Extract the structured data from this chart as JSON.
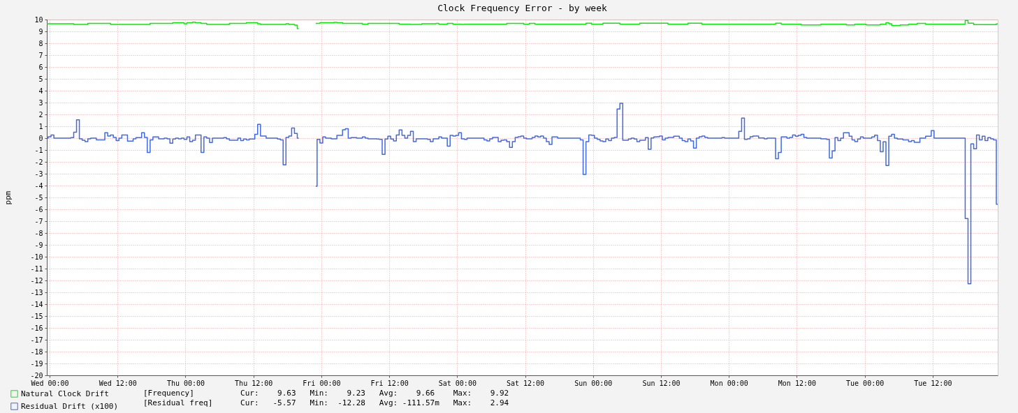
{
  "chart_data": {
    "type": "step",
    "title": "Clock Frequency Error - by week",
    "ylabel": "ppm",
    "categories": [
      null,
      "Wed 00:00",
      null,
      null,
      null,
      null,
      null,
      null,
      null,
      null,
      null,
      null,
      null,
      null,
      null,
      null,
      null,
      null,
      null,
      null,
      null,
      null,
      null,
      null,
      null,
      "Wed 12:00",
      null,
      null,
      null,
      null,
      null,
      null,
      null,
      null,
      null,
      null,
      null,
      null,
      null,
      null,
      null,
      null,
      null,
      null,
      null,
      null,
      null,
      null,
      null,
      "Thu 00:00",
      null,
      null,
      null,
      null,
      null,
      null,
      null,
      null,
      null,
      null,
      null,
      null,
      null,
      null,
      null,
      null,
      null,
      null,
      null,
      null,
      null,
      null,
      null,
      "Thu 12:00",
      null,
      null,
      null,
      null,
      null,
      null,
      null,
      null,
      null,
      null,
      null,
      null,
      null,
      null,
      null,
      null,
      null,
      null,
      null,
      null,
      null,
      null,
      null,
      "Fri 00:00",
      null,
      null,
      null,
      null,
      null,
      null,
      null,
      null,
      null,
      null,
      null,
      null,
      null,
      null,
      null,
      null,
      null,
      null,
      null,
      null,
      null,
      null,
      null,
      "Fri 12:00",
      null,
      null,
      null,
      null,
      null,
      null,
      null,
      null,
      null,
      null,
      null,
      null,
      null,
      null,
      null,
      null,
      null,
      null,
      null,
      null,
      null,
      null,
      null,
      "Sat 00:00",
      null,
      null,
      null,
      null,
      null,
      null,
      null,
      null,
      null,
      null,
      null,
      null,
      null,
      null,
      null,
      null,
      null,
      null,
      null,
      null,
      null,
      null,
      null,
      "Sat 12:00",
      null,
      null,
      null,
      null,
      null,
      null,
      null,
      null,
      null,
      null,
      null,
      null,
      null,
      null,
      null,
      null,
      null,
      null,
      null,
      null,
      null,
      null,
      null,
      "Sun 00:00",
      null,
      null,
      null,
      null,
      null,
      null,
      null,
      null,
      null,
      null,
      null,
      null,
      null,
      null,
      null,
      null,
      null,
      null,
      null,
      null,
      null,
      null,
      null,
      "Sun 12:00",
      null,
      null,
      null,
      null,
      null,
      null,
      null,
      null,
      null,
      null,
      null,
      null,
      null,
      null,
      null,
      null,
      null,
      null,
      null,
      null,
      null,
      null,
      null,
      "Mon 00:00",
      null,
      null,
      null,
      null,
      null,
      null,
      null,
      null,
      null,
      null,
      null,
      null,
      null,
      null,
      null,
      null,
      null,
      null,
      null,
      null,
      null,
      null,
      null,
      "Mon 12:00",
      null,
      null,
      null,
      null,
      null,
      null,
      null,
      null,
      null,
      null,
      null,
      null,
      null,
      null,
      null,
      null,
      null,
      null,
      null,
      null,
      null,
      null,
      null,
      "Tue 00:00",
      null,
      null,
      null,
      null,
      null,
      null,
      null,
      null,
      null,
      null,
      null,
      null,
      null,
      null,
      null,
      null,
      null,
      null,
      null,
      null,
      null,
      null,
      null,
      "Tue 12:00",
      null,
      null,
      null,
      null,
      null,
      null,
      null,
      null,
      null,
      null,
      null,
      null,
      null,
      null,
      null,
      null,
      null,
      null,
      null,
      null,
      null,
      null,
      null
    ],
    "ylim": [
      -20,
      10
    ],
    "yticks": [
      -20,
      -19,
      -18,
      -17,
      -16,
      -15,
      -14,
      -13,
      -12,
      -11,
      -10,
      -9,
      -8,
      -7,
      -6,
      -5,
      -4,
      -3,
      -2,
      -1,
      0,
      1,
      2,
      3,
      4,
      5,
      6,
      7,
      8,
      9,
      10
    ],
    "grid": true,
    "legend": "bottom",
    "series": [
      {
        "name": "Natural Clock Drift",
        "color": "#00ee00",
        "values": [
          9.65,
          9.65,
          9.65,
          9.65,
          9.65,
          9.65,
          9.65,
          9.65,
          9.65,
          9.65,
          9.59,
          9.59,
          9.59,
          9.59,
          9.59,
          9.67,
          9.67,
          9.67,
          9.67,
          9.67,
          9.67,
          9.67,
          9.67,
          9.59,
          9.59,
          9.59,
          9.59,
          9.59,
          9.59,
          9.59,
          9.59,
          9.59,
          9.59,
          9.59,
          9.59,
          9.59,
          9.59,
          9.67,
          9.67,
          9.67,
          9.67,
          9.67,
          9.67,
          9.67,
          9.67,
          9.73,
          9.73,
          9.73,
          9.73,
          9.65,
          9.73,
          9.73,
          9.78,
          9.73,
          9.73,
          9.67,
          9.67,
          9.59,
          9.59,
          9.59,
          9.59,
          9.59,
          9.59,
          9.59,
          9.59,
          9.67,
          9.67,
          9.67,
          9.67,
          9.67,
          9.67,
          9.73,
          9.73,
          9.73,
          9.73,
          9.65,
          9.59,
          9.59,
          9.59,
          9.59,
          9.59,
          9.59,
          9.59,
          9.59,
          9.59,
          9.65,
          9.59,
          9.59,
          9.53,
          9.23,
          null,
          null,
          null,
          null,
          null,
          9.67,
          9.67,
          9.73,
          9.73,
          9.73,
          9.73,
          9.73,
          9.76,
          9.73,
          9.73,
          9.67,
          9.67,
          9.67,
          9.67,
          9.67,
          9.67,
          9.67,
          9.61,
          9.61,
          9.67,
          9.67,
          9.67,
          9.67,
          9.67,
          9.67,
          9.67,
          9.67,
          9.67,
          9.67,
          9.67,
          9.61,
          9.61,
          9.61,
          9.61,
          9.59,
          9.59,
          9.59,
          9.59,
          9.65,
          9.65,
          9.65,
          9.65,
          9.65,
          9.67,
          9.61,
          9.61,
          9.61,
          9.67,
          9.67,
          9.61,
          9.61,
          9.61,
          9.59,
          9.61,
          9.61,
          9.61,
          9.61,
          9.61,
          9.61,
          9.61,
          9.61,
          9.61,
          9.61,
          9.61,
          9.61,
          9.61,
          9.61,
          9.61,
          9.67,
          9.67,
          9.67,
          9.67,
          9.67,
          9.67,
          9.61,
          9.61,
          9.67,
          9.67,
          9.61,
          9.61,
          9.61,
          9.61,
          9.61,
          9.61,
          9.61,
          9.61,
          9.61,
          9.61,
          9.61,
          9.61,
          9.61,
          9.61,
          9.61,
          9.61,
          9.61,
          9.61,
          9.69,
          9.69,
          9.61,
          9.61,
          9.61,
          9.61,
          9.69,
          9.69,
          9.69,
          9.69,
          9.69,
          9.69,
          9.61,
          9.61,
          9.61,
          9.61,
          9.61,
          9.61,
          9.61,
          9.69,
          9.69,
          9.69,
          9.69,
          9.69,
          9.69,
          9.69,
          9.69,
          9.69,
          9.69,
          9.61,
          9.61,
          9.61,
          9.61,
          9.61,
          9.61,
          9.61,
          9.69,
          9.69,
          9.69,
          9.69,
          9.69,
          9.61,
          9.61,
          9.61,
          9.61,
          9.61,
          9.61,
          9.61,
          9.61,
          9.61,
          9.61,
          9.61,
          9.61,
          9.61,
          9.61,
          9.61,
          9.61,
          9.61,
          9.61,
          9.61,
          9.61,
          9.61,
          9.61,
          9.61,
          9.61,
          9.61,
          9.61,
          9.69,
          9.69,
          9.61,
          9.61,
          9.61,
          9.61,
          9.61,
          9.61,
          9.61,
          9.55,
          9.55,
          9.55,
          9.55,
          9.55,
          9.55,
          9.55,
          9.61,
          9.61,
          9.61,
          9.61,
          9.61,
          9.61,
          9.61,
          9.61,
          9.61,
          9.55,
          9.55,
          9.55,
          9.61,
          9.61,
          9.61,
          9.61,
          9.55,
          9.55,
          9.55,
          9.55,
          9.55,
          9.61,
          9.61,
          9.73,
          9.65,
          9.5,
          9.5,
          9.5,
          9.55,
          9.55,
          9.55,
          9.61,
          9.61,
          9.61,
          9.67,
          9.67,
          9.67,
          9.61,
          9.61,
          9.61,
          9.61,
          9.61,
          9.61,
          9.61,
          9.61,
          9.61,
          9.61,
          9.61,
          9.61,
          9.61,
          9.61,
          9.92,
          9.69,
          9.69,
          9.57,
          9.57,
          9.57,
          9.57,
          9.57,
          9.57,
          9.57,
          9.57,
          9.63
        ]
      },
      {
        "name": "Residual Drift (x100)",
        "color": "#4169e1",
        "values": [
          0,
          0.12,
          0.27,
          0,
          0,
          0,
          0,
          0,
          0,
          0.04,
          0.5,
          1.55,
          -0.06,
          -0.18,
          -0.3,
          -0.06,
          0,
          0,
          -0.14,
          -0.14,
          -0.14,
          0.45,
          0.18,
          0.27,
          0.06,
          -0.2,
          0,
          0.27,
          0.27,
          -0.25,
          -0.25,
          -0.06,
          0.04,
          0.04,
          0.45,
          0.06,
          -1.2,
          -0.14,
          0.1,
          0.1,
          -0.06,
          -0.06,
          0,
          -0.06,
          -0.43,
          -0.08,
          0,
          -0.06,
          0,
          -0.1,
          0.1,
          -0.3,
          -0.18,
          0.27,
          0.27,
          -1.2,
          0.1,
          0,
          -0.37,
          0,
          0,
          0,
          0,
          0.04,
          -0.06,
          -0.18,
          -0.18,
          -0.18,
          0,
          -0.2,
          -0.08,
          -0.14,
          -0.08,
          -0.08,
          0.33,
          1.16,
          0.18,
          0.18,
          0,
          0,
          0,
          0,
          -0.08,
          -0.14,
          -2.25,
          0.06,
          0.18,
          0.86,
          0.4,
          0,
          null,
          null,
          null,
          null,
          null,
          -4.06,
          -0.1,
          -0.41,
          0.1,
          0,
          0,
          -0.06,
          -0.06,
          0.24,
          0.24,
          0.7,
          0.8,
          0,
          0.04,
          0.04,
          0,
          0,
          0.1,
          0,
          -0.06,
          -0.06,
          -0.06,
          -0.08,
          -0.1,
          -1.37,
          -0.08,
          0.16,
          -0.08,
          -0.24,
          0.27,
          0.69,
          0.24,
          0,
          0.24,
          0.57,
          -0.3,
          -0.06,
          -0.06,
          -0.06,
          -0.06,
          -0.1,
          -0.3,
          -0.06,
          -0.06,
          0.1,
          0,
          0,
          -0.67,
          0.24,
          0.18,
          0.24,
          0.45,
          -0.06,
          -0.1,
          0,
          0,
          0,
          0,
          0,
          0,
          -0.14,
          -0.24,
          -0.06,
          0.06,
          0.06,
          -0.3,
          -0.18,
          -0.14,
          -0.3,
          -0.78,
          -0.3,
          0.06,
          0.12,
          0.18,
          0,
          -0.06,
          -0.06,
          0.06,
          0.18,
          0.1,
          0.18,
          0,
          -0.3,
          -0.53,
          0.1,
          0.1,
          0,
          0,
          0,
          0,
          0,
          0,
          0,
          0,
          -0.14,
          -3.06,
          -0.3,
          0.27,
          0.24,
          0,
          -0.1,
          -0.24,
          -0.3,
          -0.08,
          -0.2,
          0,
          0.06,
          2.45,
          2.94,
          -0.18,
          -0.18,
          -0.08,
          0,
          -0.08,
          -0.3,
          -0.18,
          -0.18,
          0.04,
          -0.94,
          0.02,
          0.1,
          0.12,
          0.18,
          -0.14,
          0,
          0.06,
          0.06,
          0.16,
          0.16,
          0,
          -0.2,
          -0.3,
          -0.08,
          -0.24,
          -0.84,
          0,
          0.12,
          0.18,
          0.06,
          0,
          0,
          0,
          0,
          0,
          0.04,
          0,
          0,
          0,
          0,
          0,
          0.57,
          1.69,
          -0.1,
          -0.06,
          0.12,
          0.18,
          0.18,
          0.02,
          0.02,
          -0.06,
          0,
          0,
          0,
          -1.73,
          -1.2,
          0.1,
          0.1,
          0,
          0.06,
          0.27,
          0.16,
          0.24,
          0.33,
          0.06,
          0,
          0,
          0,
          0,
          0,
          -0.06,
          -0.06,
          -0.1,
          -1.67,
          -1.08,
          0.04,
          -0.2,
          0,
          0.45,
          0.45,
          0.16,
          -0.14,
          -0.3,
          -0.08,
          0.1,
          0,
          0,
          0,
          0.1,
          0.25,
          -0.2,
          -1.14,
          -0.31,
          -2.31,
          0.16,
          0.33,
          0,
          -0.08,
          -0.08,
          -0.14,
          -0.14,
          -0.3,
          -0.2,
          -0.35,
          -0.35,
          0,
          0,
          0.16,
          0.16,
          0.63,
          0,
          0,
          0,
          0,
          0,
          0,
          0,
          0,
          0,
          0,
          0,
          -6.78,
          -12.28,
          -0.49,
          -0.9,
          0.27,
          -0.14,
          0.16,
          -0.2,
          0.04,
          -0.06,
          -0.14,
          -5.57
        ]
      }
    ],
    "annotations": [
      "[Frequency]          Cur:    9.63   Min:    9.23   Avg:    9.66    Max:    9.92",
      "[Residual freq]      Cur:   -5.57   Min:  -12.28   Avg: -111.57m   Max:    2.94"
    ]
  }
}
